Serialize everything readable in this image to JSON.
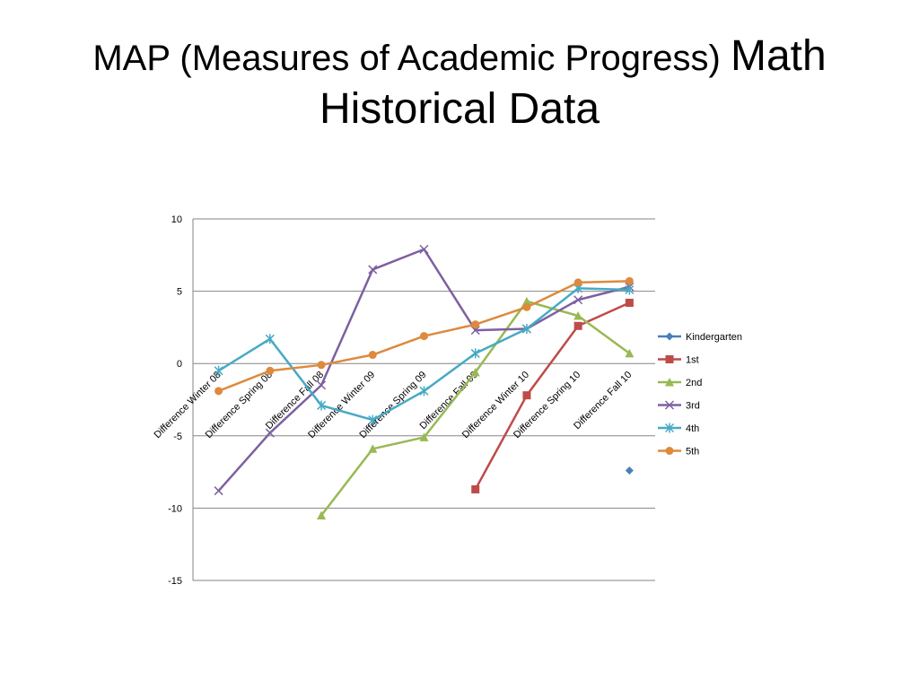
{
  "slide": {
    "title_part1": "MAP (Measures of Academic Progress) ",
    "title_part2": "Math",
    "title_line2": "Historical Data"
  },
  "chart_data": {
    "type": "line",
    "title": "",
    "xlabel": "",
    "ylabel": "",
    "categories": [
      "Difference Winter 08",
      "Difference Spring 08",
      "Difference Fall 08",
      "Difference Winter 09",
      "Difference Spring 09",
      "Difference Fall 09",
      "Difference Winter 10",
      "Difference Spring 10",
      "Difference Fall 10"
    ],
    "ylim": [
      -15,
      10
    ],
    "yticks": [
      10,
      5,
      0,
      -5,
      -10,
      -15
    ],
    "grid": true,
    "legend_position": "right",
    "series": [
      {
        "name": "Kindergarten",
        "color": "#4a7ebb",
        "marker": "diamond",
        "values": [
          null,
          null,
          null,
          null,
          null,
          null,
          null,
          null,
          -7.4
        ]
      },
      {
        "name": "1st",
        "color": "#be4b48",
        "marker": "square",
        "values": [
          null,
          null,
          null,
          null,
          null,
          -8.7,
          -2.2,
          2.6,
          4.2
        ]
      },
      {
        "name": "2nd",
        "color": "#98b954",
        "marker": "triangle",
        "values": [
          null,
          null,
          -10.5,
          -5.9,
          -5.1,
          -0.6,
          4.3,
          3.3,
          0.7
        ]
      },
      {
        "name": "3rd",
        "color": "#7d60a0",
        "marker": "x",
        "values": [
          -8.8,
          -4.8,
          -1.5,
          6.5,
          7.9,
          2.3,
          2.4,
          4.4,
          5.3
        ]
      },
      {
        "name": "4th",
        "color": "#46aac5",
        "marker": "star",
        "values": [
          -0.5,
          1.7,
          -2.9,
          -3.9,
          -1.9,
          0.7,
          2.4,
          5.2,
          5.1
        ]
      },
      {
        "name": "5th",
        "color": "#dd8a3d",
        "marker": "circle",
        "values": [
          -1.9,
          -0.5,
          -0.1,
          0.6,
          1.9,
          2.7,
          3.9,
          5.6,
          5.7
        ]
      }
    ]
  }
}
